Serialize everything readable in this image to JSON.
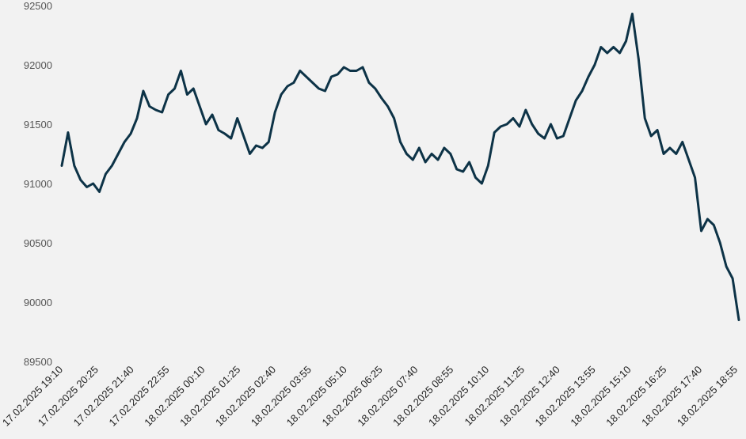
{
  "chart_data": {
    "type": "line",
    "title": "",
    "xlabel": "",
    "ylabel": "",
    "ylim": [
      89500,
      92500
    ],
    "y_ticks": [
      89500,
      90000,
      90500,
      91000,
      91500,
      92000,
      92500
    ],
    "x_tick_labels": [
      "17.02.2025 19:10",
      "17.02.2025 20:25",
      "17.02.2025 21:40",
      "17.02.2025 22:55",
      "18.02.2025 00:10",
      "18.02.2025 01:25",
      "18.02.2025 02:40",
      "18.02.2025 03:55",
      "18.02.2025 05:10",
      "18.02.2025 06:25",
      "18.02.2025 07:40",
      "18.02.2025 08:55",
      "18.02.2025 10:10",
      "18.02.2025 11:25",
      "18.02.2025 12:40",
      "18.02.2025 13:55",
      "18.02.2025 15:10",
      "18.02.2025 16:25",
      "18.02.2025 17:40",
      "18.02.2025 18:55"
    ],
    "grid": false,
    "legend": "none",
    "line_color": "#0d3347",
    "series": [
      {
        "name": "",
        "points": [
          [
            0,
            91150
          ],
          [
            5,
            91430
          ],
          [
            10,
            91150
          ],
          [
            15,
            91030
          ],
          [
            20,
            90970
          ],
          [
            25,
            91000
          ],
          [
            30,
            90930
          ],
          [
            35,
            91080
          ],
          [
            40,
            91150
          ],
          [
            45,
            91250
          ],
          [
            50,
            91350
          ],
          [
            55,
            91420
          ],
          [
            60,
            91550
          ],
          [
            65,
            91780
          ],
          [
            70,
            91650
          ],
          [
            75,
            91620
          ],
          [
            80,
            91600
          ],
          [
            85,
            91750
          ],
          [
            90,
            91800
          ],
          [
            95,
            91950
          ],
          [
            100,
            91750
          ],
          [
            105,
            91800
          ],
          [
            110,
            91650
          ],
          [
            115,
            91500
          ],
          [
            120,
            91580
          ],
          [
            125,
            91450
          ],
          [
            130,
            91420
          ],
          [
            135,
            91380
          ],
          [
            140,
            91550
          ],
          [
            145,
            91400
          ],
          [
            150,
            91250
          ],
          [
            155,
            91320
          ],
          [
            160,
            91300
          ],
          [
            165,
            91350
          ],
          [
            170,
            91600
          ],
          [
            175,
            91750
          ],
          [
            180,
            91820
          ],
          [
            185,
            91850
          ],
          [
            190,
            91950
          ],
          [
            195,
            91900
          ],
          [
            200,
            91850
          ],
          [
            205,
            91800
          ],
          [
            210,
            91780
          ],
          [
            215,
            91900
          ],
          [
            220,
            91920
          ],
          [
            225,
            91980
          ],
          [
            230,
            91950
          ],
          [
            235,
            91950
          ],
          [
            240,
            91980
          ],
          [
            245,
            91850
          ],
          [
            250,
            91800
          ],
          [
            255,
            91720
          ],
          [
            260,
            91650
          ],
          [
            265,
            91550
          ],
          [
            270,
            91350
          ],
          [
            275,
            91250
          ],
          [
            280,
            91200
          ],
          [
            285,
            91300
          ],
          [
            290,
            91180
          ],
          [
            295,
            91250
          ],
          [
            300,
            91200
          ],
          [
            305,
            91300
          ],
          [
            310,
            91250
          ],
          [
            315,
            91120
          ],
          [
            320,
            91100
          ],
          [
            325,
            91180
          ],
          [
            330,
            91050
          ],
          [
            335,
            91000
          ],
          [
            340,
            91150
          ],
          [
            345,
            91430
          ],
          [
            350,
            91480
          ],
          [
            355,
            91500
          ],
          [
            360,
            91550
          ],
          [
            365,
            91480
          ],
          [
            370,
            91620
          ],
          [
            375,
            91500
          ],
          [
            380,
            91420
          ],
          [
            385,
            91380
          ],
          [
            390,
            91500
          ],
          [
            395,
            91380
          ],
          [
            400,
            91400
          ],
          [
            405,
            91550
          ],
          [
            410,
            91700
          ],
          [
            415,
            91780
          ],
          [
            420,
            91900
          ],
          [
            425,
            92000
          ],
          [
            430,
            92150
          ],
          [
            435,
            92100
          ],
          [
            440,
            92150
          ],
          [
            445,
            92100
          ],
          [
            450,
            92200
          ],
          [
            455,
            92430
          ],
          [
            460,
            92050
          ],
          [
            465,
            91550
          ],
          [
            470,
            91400
          ],
          [
            475,
            91450
          ],
          [
            480,
            91250
          ],
          [
            485,
            91300
          ],
          [
            490,
            91250
          ],
          [
            495,
            91350
          ],
          [
            500,
            91200
          ],
          [
            505,
            91050
          ],
          [
            510,
            90600
          ],
          [
            515,
            90700
          ],
          [
            520,
            90650
          ],
          [
            525,
            90500
          ],
          [
            530,
            90300
          ],
          [
            535,
            90200
          ],
          [
            540,
            89850
          ]
        ]
      }
    ]
  }
}
